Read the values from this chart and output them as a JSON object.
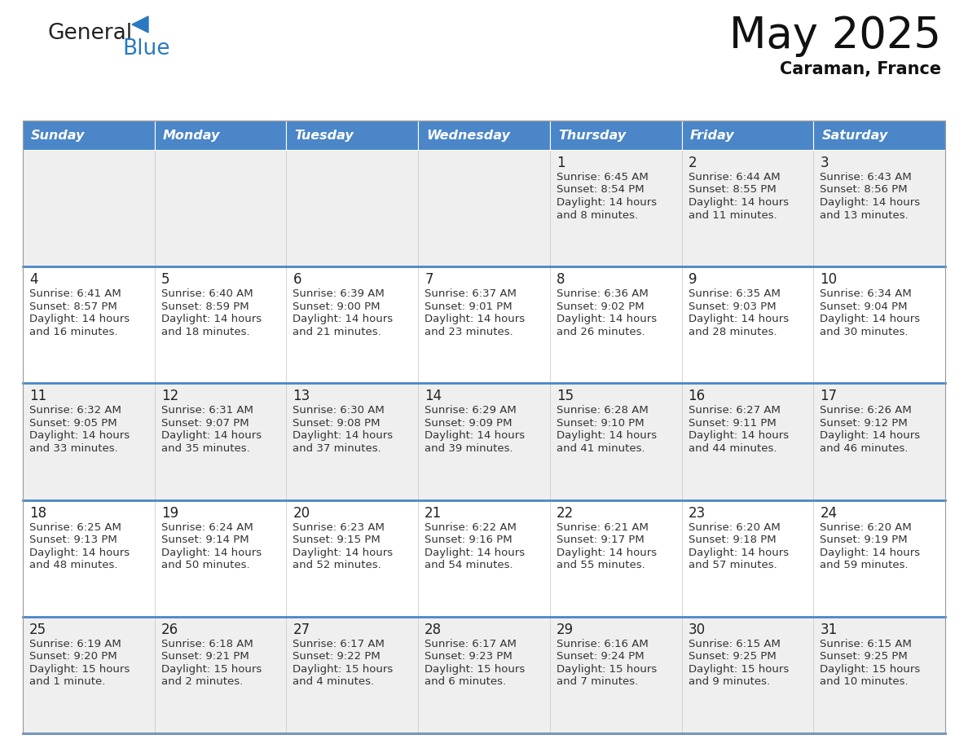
{
  "title": "May 2025",
  "subtitle": "Caraman, France",
  "header_bg": "#4a86c8",
  "header_text_color": "#ffffff",
  "days_of_week": [
    "Sunday",
    "Monday",
    "Tuesday",
    "Wednesday",
    "Thursday",
    "Friday",
    "Saturday"
  ],
  "row_colors": [
    "#efefef",
    "#ffffff",
    "#efefef",
    "#ffffff",
    "#efefef"
  ],
  "cell_text_color": "#333333",
  "day_num_color": "#222222",
  "separator_color": "#4a86c8",
  "calendar_data": [
    [
      {
        "day": "",
        "sunrise": "",
        "sunset": "",
        "daylight_line1": "",
        "daylight_line2": ""
      },
      {
        "day": "",
        "sunrise": "",
        "sunset": "",
        "daylight_line1": "",
        "daylight_line2": ""
      },
      {
        "day": "",
        "sunrise": "",
        "sunset": "",
        "daylight_line1": "",
        "daylight_line2": ""
      },
      {
        "day": "",
        "sunrise": "",
        "sunset": "",
        "daylight_line1": "",
        "daylight_line2": ""
      },
      {
        "day": "1",
        "sunrise": "Sunrise: 6:45 AM",
        "sunset": "Sunset: 8:54 PM",
        "daylight_line1": "Daylight: 14 hours",
        "daylight_line2": "and 8 minutes."
      },
      {
        "day": "2",
        "sunrise": "Sunrise: 6:44 AM",
        "sunset": "Sunset: 8:55 PM",
        "daylight_line1": "Daylight: 14 hours",
        "daylight_line2": "and 11 minutes."
      },
      {
        "day": "3",
        "sunrise": "Sunrise: 6:43 AM",
        "sunset": "Sunset: 8:56 PM",
        "daylight_line1": "Daylight: 14 hours",
        "daylight_line2": "and 13 minutes."
      }
    ],
    [
      {
        "day": "4",
        "sunrise": "Sunrise: 6:41 AM",
        "sunset": "Sunset: 8:57 PM",
        "daylight_line1": "Daylight: 14 hours",
        "daylight_line2": "and 16 minutes."
      },
      {
        "day": "5",
        "sunrise": "Sunrise: 6:40 AM",
        "sunset": "Sunset: 8:59 PM",
        "daylight_line1": "Daylight: 14 hours",
        "daylight_line2": "and 18 minutes."
      },
      {
        "day": "6",
        "sunrise": "Sunrise: 6:39 AM",
        "sunset": "Sunset: 9:00 PM",
        "daylight_line1": "Daylight: 14 hours",
        "daylight_line2": "and 21 minutes."
      },
      {
        "day": "7",
        "sunrise": "Sunrise: 6:37 AM",
        "sunset": "Sunset: 9:01 PM",
        "daylight_line1": "Daylight: 14 hours",
        "daylight_line2": "and 23 minutes."
      },
      {
        "day": "8",
        "sunrise": "Sunrise: 6:36 AM",
        "sunset": "Sunset: 9:02 PM",
        "daylight_line1": "Daylight: 14 hours",
        "daylight_line2": "and 26 minutes."
      },
      {
        "day": "9",
        "sunrise": "Sunrise: 6:35 AM",
        "sunset": "Sunset: 9:03 PM",
        "daylight_line1": "Daylight: 14 hours",
        "daylight_line2": "and 28 minutes."
      },
      {
        "day": "10",
        "sunrise": "Sunrise: 6:34 AM",
        "sunset": "Sunset: 9:04 PM",
        "daylight_line1": "Daylight: 14 hours",
        "daylight_line2": "and 30 minutes."
      }
    ],
    [
      {
        "day": "11",
        "sunrise": "Sunrise: 6:32 AM",
        "sunset": "Sunset: 9:05 PM",
        "daylight_line1": "Daylight: 14 hours",
        "daylight_line2": "and 33 minutes."
      },
      {
        "day": "12",
        "sunrise": "Sunrise: 6:31 AM",
        "sunset": "Sunset: 9:07 PM",
        "daylight_line1": "Daylight: 14 hours",
        "daylight_line2": "and 35 minutes."
      },
      {
        "day": "13",
        "sunrise": "Sunrise: 6:30 AM",
        "sunset": "Sunset: 9:08 PM",
        "daylight_line1": "Daylight: 14 hours",
        "daylight_line2": "and 37 minutes."
      },
      {
        "day": "14",
        "sunrise": "Sunrise: 6:29 AM",
        "sunset": "Sunset: 9:09 PM",
        "daylight_line1": "Daylight: 14 hours",
        "daylight_line2": "and 39 minutes."
      },
      {
        "day": "15",
        "sunrise": "Sunrise: 6:28 AM",
        "sunset": "Sunset: 9:10 PM",
        "daylight_line1": "Daylight: 14 hours",
        "daylight_line2": "and 41 minutes."
      },
      {
        "day": "16",
        "sunrise": "Sunrise: 6:27 AM",
        "sunset": "Sunset: 9:11 PM",
        "daylight_line1": "Daylight: 14 hours",
        "daylight_line2": "and 44 minutes."
      },
      {
        "day": "17",
        "sunrise": "Sunrise: 6:26 AM",
        "sunset": "Sunset: 9:12 PM",
        "daylight_line1": "Daylight: 14 hours",
        "daylight_line2": "and 46 minutes."
      }
    ],
    [
      {
        "day": "18",
        "sunrise": "Sunrise: 6:25 AM",
        "sunset": "Sunset: 9:13 PM",
        "daylight_line1": "Daylight: 14 hours",
        "daylight_line2": "and 48 minutes."
      },
      {
        "day": "19",
        "sunrise": "Sunrise: 6:24 AM",
        "sunset": "Sunset: 9:14 PM",
        "daylight_line1": "Daylight: 14 hours",
        "daylight_line2": "and 50 minutes."
      },
      {
        "day": "20",
        "sunrise": "Sunrise: 6:23 AM",
        "sunset": "Sunset: 9:15 PM",
        "daylight_line1": "Daylight: 14 hours",
        "daylight_line2": "and 52 minutes."
      },
      {
        "day": "21",
        "sunrise": "Sunrise: 6:22 AM",
        "sunset": "Sunset: 9:16 PM",
        "daylight_line1": "Daylight: 14 hours",
        "daylight_line2": "and 54 minutes."
      },
      {
        "day": "22",
        "sunrise": "Sunrise: 6:21 AM",
        "sunset": "Sunset: 9:17 PM",
        "daylight_line1": "Daylight: 14 hours",
        "daylight_line2": "and 55 minutes."
      },
      {
        "day": "23",
        "sunrise": "Sunrise: 6:20 AM",
        "sunset": "Sunset: 9:18 PM",
        "daylight_line1": "Daylight: 14 hours",
        "daylight_line2": "and 57 minutes."
      },
      {
        "day": "24",
        "sunrise": "Sunrise: 6:20 AM",
        "sunset": "Sunset: 9:19 PM",
        "daylight_line1": "Daylight: 14 hours",
        "daylight_line2": "and 59 minutes."
      }
    ],
    [
      {
        "day": "25",
        "sunrise": "Sunrise: 6:19 AM",
        "sunset": "Sunset: 9:20 PM",
        "daylight_line1": "Daylight: 15 hours",
        "daylight_line2": "and 1 minute."
      },
      {
        "day": "26",
        "sunrise": "Sunrise: 6:18 AM",
        "sunset": "Sunset: 9:21 PM",
        "daylight_line1": "Daylight: 15 hours",
        "daylight_line2": "and 2 minutes."
      },
      {
        "day": "27",
        "sunrise": "Sunrise: 6:17 AM",
        "sunset": "Sunset: 9:22 PM",
        "daylight_line1": "Daylight: 15 hours",
        "daylight_line2": "and 4 minutes."
      },
      {
        "day": "28",
        "sunrise": "Sunrise: 6:17 AM",
        "sunset": "Sunset: 9:23 PM",
        "daylight_line1": "Daylight: 15 hours",
        "daylight_line2": "and 6 minutes."
      },
      {
        "day": "29",
        "sunrise": "Sunrise: 6:16 AM",
        "sunset": "Sunset: 9:24 PM",
        "daylight_line1": "Daylight: 15 hours",
        "daylight_line2": "and 7 minutes."
      },
      {
        "day": "30",
        "sunrise": "Sunrise: 6:15 AM",
        "sunset": "Sunset: 9:25 PM",
        "daylight_line1": "Daylight: 15 hours",
        "daylight_line2": "and 9 minutes."
      },
      {
        "day": "31",
        "sunrise": "Sunrise: 6:15 AM",
        "sunset": "Sunset: 9:25 PM",
        "daylight_line1": "Daylight: 15 hours",
        "daylight_line2": "and 10 minutes."
      }
    ]
  ],
  "logo_text1": "General",
  "logo_text2": "Blue",
  "logo_color1": "#222222",
  "logo_color2": "#2979c0",
  "logo_triangle_color": "#2979c0",
  "title_fontsize": 38,
  "subtitle_fontsize": 15,
  "header_fontsize": 11.5,
  "day_num_fontsize": 12,
  "cell_fontsize": 9.5
}
